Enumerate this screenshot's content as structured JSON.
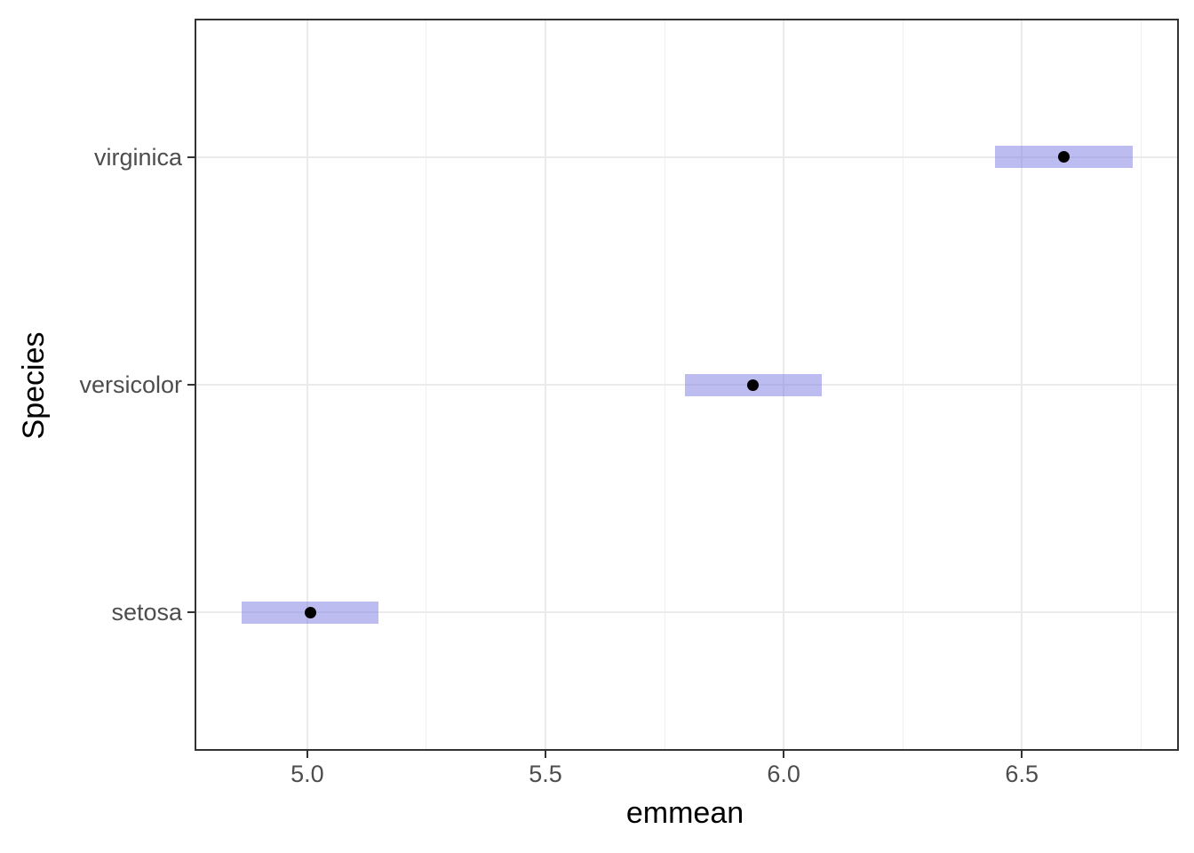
{
  "chart_data": {
    "type": "scatter",
    "subtype": "point-interval (estimated marginal means with 95% CI bars)",
    "title": "",
    "xlabel": "emmean",
    "ylabel": "Species",
    "xlim": [
      4.767,
      6.826
    ],
    "x_major_ticks": [
      5.0,
      5.5,
      6.0,
      6.5
    ],
    "x_major_tick_labels": [
      "5.0",
      "5.5",
      "6.0",
      "6.5"
    ],
    "x_minor_ticks": [
      5.25,
      5.75,
      6.25,
      6.75
    ],
    "y_range_units": [
      0.4,
      3.6
    ],
    "categories": [
      "setosa",
      "versicolor",
      "virginica"
    ],
    "series": [
      {
        "name": "emmean",
        "values": [
          5.006,
          5.936,
          6.588
        ]
      },
      {
        "name": "lower_CL",
        "values": [
          4.862,
          5.792,
          6.444
        ]
      },
      {
        "name": "upper_CL",
        "values": [
          5.15,
          6.08,
          6.732
        ]
      }
    ],
    "grid": true,
    "legend": false
  },
  "style": {
    "panel_background": "#FFFFFF",
    "panel_border_color": "#333333",
    "grid_major_color": "#EBEBEB",
    "grid_minor_color": "#F0F0F0",
    "interval_fill": "rgba(121,121,225,0.5)",
    "point_color": "#000000",
    "tick_color": "#333333",
    "tick_label_color": "#4D4D4D",
    "axis_title_color": "#000000"
  }
}
